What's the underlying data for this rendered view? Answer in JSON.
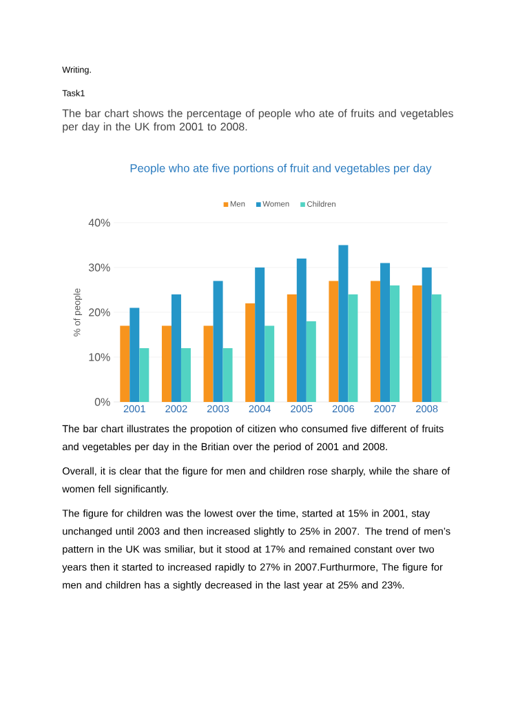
{
  "chart_data": {
    "type": "bar",
    "title": "People who ate five portions of fruit and vegetables per day",
    "ylabel": "% of people",
    "categories": [
      "2001",
      "2002",
      "2003",
      "2004",
      "2005",
      "2006",
      "2007",
      "2008"
    ],
    "series": [
      {
        "name": "Men",
        "color": "#f7941d",
        "values": [
          17,
          17,
          17,
          22,
          24,
          27,
          27,
          26
        ]
      },
      {
        "name": "Women",
        "color": "#2596c8",
        "values": [
          21,
          24,
          27,
          30,
          32,
          35,
          31,
          30
        ]
      },
      {
        "name": "Children",
        "color": "#52d3c3",
        "values": [
          12,
          12,
          12,
          17,
          18,
          24,
          26,
          24
        ]
      }
    ],
    "ylim": [
      0,
      40
    ],
    "yticks": [
      {
        "value": 0,
        "label": "0%"
      },
      {
        "value": 10,
        "label": "10%"
      },
      {
        "value": 20,
        "label": "20%"
      },
      {
        "value": 30,
        "label": "30%"
      },
      {
        "value": 40,
        "label": "40%"
      }
    ],
    "grid": "y",
    "legend": "top",
    "annotations": [
      "Writing.",
      "Task1",
      "The bar chart shows the percentage of people who ate of fruits and vegetables per day in the UK from 2001 to 2008.",
      "The bar chart illustrates the propotion of citizen who consumed five different of fruits and vegetables per day in the Britian over the period of 2001 and 2008.",
      "Overall, it is clear that the figure for men and children rose sharply, while the share of women fell significantly.",
      "The figure for children was the lowest over the time, started at 15% in 2001, stay unchanged until 2003 and then increased slightly to 25% in 2007. The trend of men’s pattern in the UK was smiliar, but it stood at 17% and remained constant over two years then it started to increased rapidly to 27% in 2007.Furthurmore, The figure for men and children has a sightly decreased in the last year at 25% and 23%."
    ]
  }
}
